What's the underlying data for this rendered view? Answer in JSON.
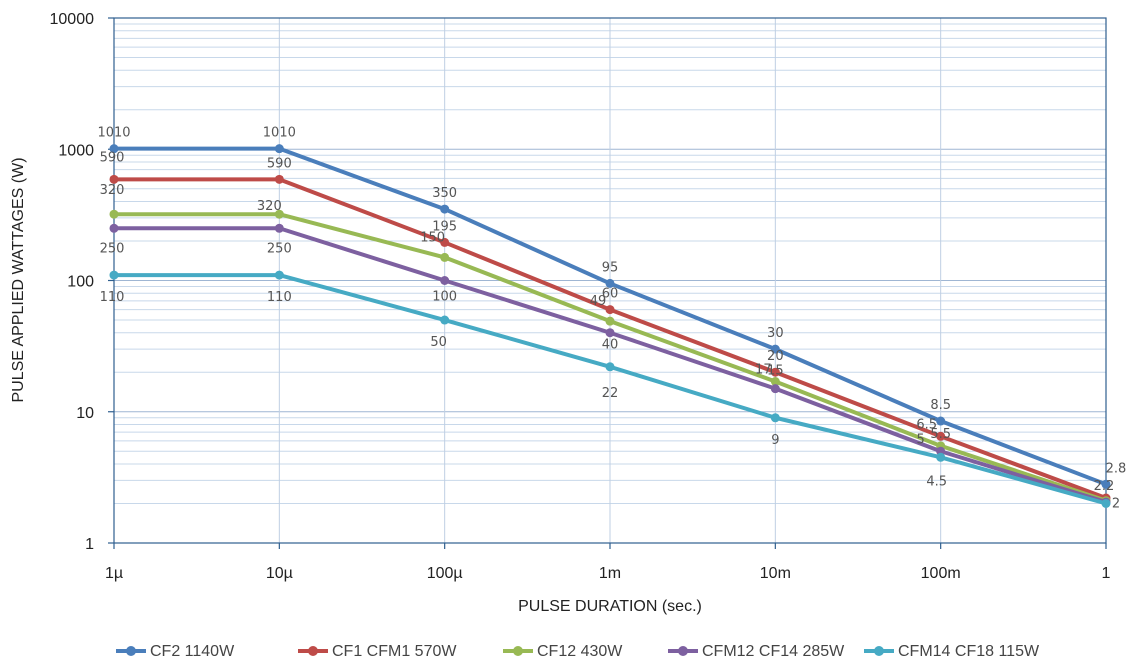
{
  "chart_data": {
    "type": "line",
    "title": "",
    "xlabel": "PULSE DURATION (sec.)",
    "ylabel": "PULSE APPLIED WATTAGES (W)",
    "x_scale": "log",
    "y_scale": "log",
    "xlim": [
      1e-06,
      1
    ],
    "ylim": [
      1,
      10000
    ],
    "grid": true,
    "legend_position": "bottom",
    "x_ticks": [
      {
        "value": 1e-06,
        "label": "1µ"
      },
      {
        "value": 1e-05,
        "label": "10µ"
      },
      {
        "value": 0.0001,
        "label": "100µ"
      },
      {
        "value": 0.001,
        "label": "1m"
      },
      {
        "value": 0.01,
        "label": "10m"
      },
      {
        "value": 0.1,
        "label": "100m"
      },
      {
        "value": 1,
        "label": "1"
      }
    ],
    "y_ticks": [
      {
        "value": 1,
        "label": "1"
      },
      {
        "value": 10,
        "label": "10"
      },
      {
        "value": 100,
        "label": "100"
      },
      {
        "value": 1000,
        "label": "1000"
      },
      {
        "value": 10000,
        "label": "10000"
      }
    ],
    "series": [
      {
        "name": "CF2 1140W",
        "color": "#4a7ebb",
        "points": [
          {
            "x": 1e-06,
            "y": 1010,
            "label": "1010"
          },
          {
            "x": 1e-05,
            "y": 1010,
            "label": "1010"
          },
          {
            "x": 0.0001,
            "y": 350,
            "label": "350"
          },
          {
            "x": 0.001,
            "y": 95,
            "label": "95"
          },
          {
            "x": 0.01,
            "y": 30,
            "label": "30"
          },
          {
            "x": 0.1,
            "y": 8.5,
            "label": "8.5"
          },
          {
            "x": 1,
            "y": 2.8,
            "label": "2.8"
          }
        ]
      },
      {
        "name": "CF1 CFM1 570W",
        "color": "#be4b48",
        "points": [
          {
            "x": 1e-06,
            "y": 590,
            "label": "590"
          },
          {
            "x": 1e-05,
            "y": 590,
            "label": "590"
          },
          {
            "x": 0.0001,
            "y": 195,
            "label": "195"
          },
          {
            "x": 0.001,
            "y": 60,
            "label": "60"
          },
          {
            "x": 0.01,
            "y": 20,
            "label": "20"
          },
          {
            "x": 0.1,
            "y": 6.5,
            "label": "6.5"
          },
          {
            "x": 1,
            "y": 2.2,
            "label": "2.2"
          }
        ]
      },
      {
        "name": "CF12 430W",
        "color": "#98b954",
        "points": [
          {
            "x": 1e-06,
            "y": 320,
            "label": "320"
          },
          {
            "x": 1e-05,
            "y": 320,
            "label": "320"
          },
          {
            "x": 0.0001,
            "y": 150,
            "label": "150"
          },
          {
            "x": 0.001,
            "y": 49,
            "label": "49"
          },
          {
            "x": 0.01,
            "y": 17,
            "label": "17"
          },
          {
            "x": 0.1,
            "y": 5.5,
            "label": "5.5"
          },
          {
            "x": 1,
            "y": 2.1,
            "label": ""
          }
        ]
      },
      {
        "name": "CFM12 CF14 285W",
        "color": "#7d60a0",
        "points": [
          {
            "x": 1e-06,
            "y": 250,
            "label": "250"
          },
          {
            "x": 1e-05,
            "y": 250,
            "label": "250"
          },
          {
            "x": 0.0001,
            "y": 100,
            "label": "100"
          },
          {
            "x": 0.001,
            "y": 40,
            "label": "40"
          },
          {
            "x": 0.01,
            "y": 15,
            "label": "15"
          },
          {
            "x": 0.1,
            "y": 5,
            "label": "5"
          },
          {
            "x": 1,
            "y": 2.05,
            "label": ""
          }
        ]
      },
      {
        "name": "CFM14 CF18 115W",
        "color": "#46aac4",
        "points": [
          {
            "x": 1e-06,
            "y": 110,
            "label": "110"
          },
          {
            "x": 1e-05,
            "y": 110,
            "label": "110"
          },
          {
            "x": 0.0001,
            "y": 50,
            "label": "50"
          },
          {
            "x": 0.001,
            "y": 22,
            "label": "22"
          },
          {
            "x": 0.01,
            "y": 9,
            "label": "9"
          },
          {
            "x": 0.1,
            "y": 4.5,
            "label": "4.5"
          },
          {
            "x": 1,
            "y": 2,
            "label": "2"
          }
        ]
      }
    ]
  }
}
